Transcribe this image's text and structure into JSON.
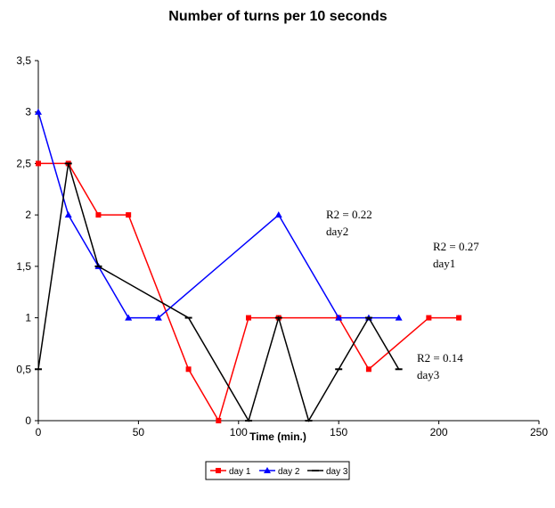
{
  "chart_data": {
    "type": "line",
    "title": "Number of turns per 10 seconds",
    "xlabel": "Time (min.)",
    "ylabel": "",
    "xlim": [
      0,
      250
    ],
    "ylim": [
      0,
      3.5
    ],
    "xticks": [
      0,
      50,
      100,
      150,
      200,
      250
    ],
    "yticks": [
      0,
      0.5,
      1,
      1.5,
      2,
      2.5,
      3,
      3.5
    ],
    "xtick_labels": [
      "0",
      "50",
      "100",
      "150",
      "200",
      "250"
    ],
    "ytick_labels": [
      "0",
      "0,5",
      "1",
      "1,5",
      "2",
      "2,5",
      "3",
      "3,5"
    ],
    "grid": false,
    "legend_position": "bottom",
    "series": [
      {
        "name": "day 1",
        "color": "#ff0000",
        "marker": "square",
        "x": [
          0,
          15,
          30,
          45,
          75,
          90,
          105,
          120,
          150,
          165,
          195,
          210
        ],
        "y": [
          2.5,
          2.5,
          2,
          2,
          0.5,
          0,
          1,
          1,
          1,
          0.5,
          1,
          1
        ]
      },
      {
        "name": "day 2",
        "color": "#0000ff",
        "marker": "triangle",
        "x": [
          0,
          15,
          30,
          45,
          60,
          120,
          150,
          165,
          180
        ],
        "y": [
          3,
          2,
          1.5,
          1,
          1,
          2,
          1,
          1,
          1
        ]
      },
      {
        "name": "day 3",
        "color": "#000000",
        "marker": "dash",
        "x": [
          0,
          15,
          30,
          75,
          105,
          120,
          135,
          150,
          165,
          180
        ],
        "y": [
          0.5,
          2.5,
          1.5,
          1,
          0,
          1,
          0,
          0.5,
          1,
          0.5
        ]
      }
    ],
    "annotations": [
      {
        "lines": [
          "R2 = 0.22",
          "day2"
        ]
      },
      {
        "lines": [
          "R2 = 0.27",
          "day1"
        ]
      },
      {
        "lines": [
          "R2 = 0.14",
          "day3"
        ]
      }
    ]
  }
}
